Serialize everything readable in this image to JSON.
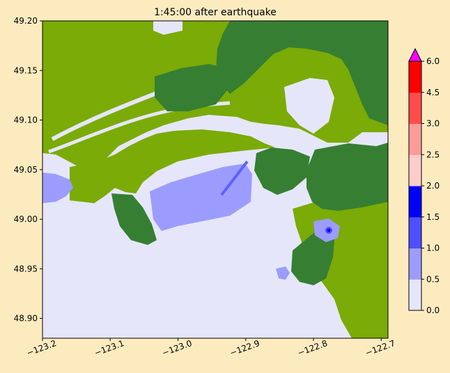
{
  "chart_data": {
    "type": "heatmap",
    "title": "1:45:00 after earthquake",
    "xlabel": "",
    "ylabel": "",
    "xlim": [
      -123.2,
      -122.69
    ],
    "ylim": [
      48.88,
      49.2
    ],
    "xticks": [
      -123.2,
      -123.1,
      -123.0,
      -122.9,
      -122.8,
      -122.7
    ],
    "xtick_labels": [
      "−123.2",
      "−123.1",
      "−123.0",
      "−122.9",
      "−122.8",
      "−122.7"
    ],
    "yticks": [
      48.9,
      48.95,
      49.0,
      49.05,
      49.1,
      49.15,
      49.2
    ],
    "ytick_labels": [
      "48.90",
      "48.95",
      "49.00",
      "49.05",
      "49.10",
      "49.15",
      "49.20"
    ],
    "colorbar": {
      "ticks": [
        0.0,
        0.5,
        1.0,
        1.5,
        2.0,
        2.5,
        3.0,
        4.5,
        6.0
      ],
      "tick_labels": [
        "0.0",
        "0.5",
        "1.0",
        "1.5",
        "2.0",
        "2.5",
        "3.0",
        "4.5",
        "6.0"
      ],
      "colors": [
        "#e6e6fa",
        "#9c9cff",
        "#4f4fff",
        "#0000ff",
        "#ffcccc",
        "#ff9b9b",
        "#ff4d4d",
        "#ff0000"
      ],
      "extend_max_color": "#ff00ff"
    },
    "colors": {
      "water": "#e6e6fa",
      "lowland": "#7aab06",
      "highland": "#367f32",
      "inundation_light": "#9c9cff",
      "inundation_mid": "#6060ff",
      "inundation_deep": "#0000ff"
    },
    "grid": false
  }
}
